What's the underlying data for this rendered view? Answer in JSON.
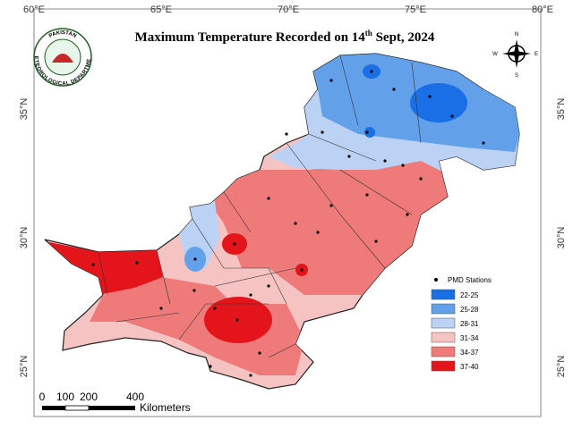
{
  "title": {
    "main": "Maximum Temperature Recorded on 14",
    "sup": "th",
    "tail": " Sept, 2024"
  },
  "logo": {
    "top": "PAKISTAN",
    "bottom": "METEOROLOGICAL DEPARTMENT"
  },
  "longitude_labels": [
    "60°E",
    "65°E",
    "70°E",
    "75°E",
    "80°E"
  ],
  "latitude_labels_left": [
    "35°N",
    "30°N",
    "25°N"
  ],
  "latitude_labels_right": [
    "35°N",
    "30°N",
    "25°N"
  ],
  "compass": {
    "n": "N",
    "e": "E",
    "s": "S",
    "w": "W"
  },
  "legend": {
    "stations": "PMD Stations",
    "classes": [
      {
        "label": "22-25",
        "color": "#1a6fe6"
      },
      {
        "label": "25-28",
        "color": "#62a0ea"
      },
      {
        "label": "28-31",
        "color": "#bcd2f5"
      },
      {
        "label": "31-34",
        "color": "#f6c3c3"
      },
      {
        "label": "34-37",
        "color": "#ee7a7a"
      },
      {
        "label": "37-40",
        "color": "#e3141a"
      }
    ]
  },
  "scale": {
    "ticks": [
      "0",
      "100",
      "200",
      "400"
    ],
    "unit": "Kilometers"
  }
}
